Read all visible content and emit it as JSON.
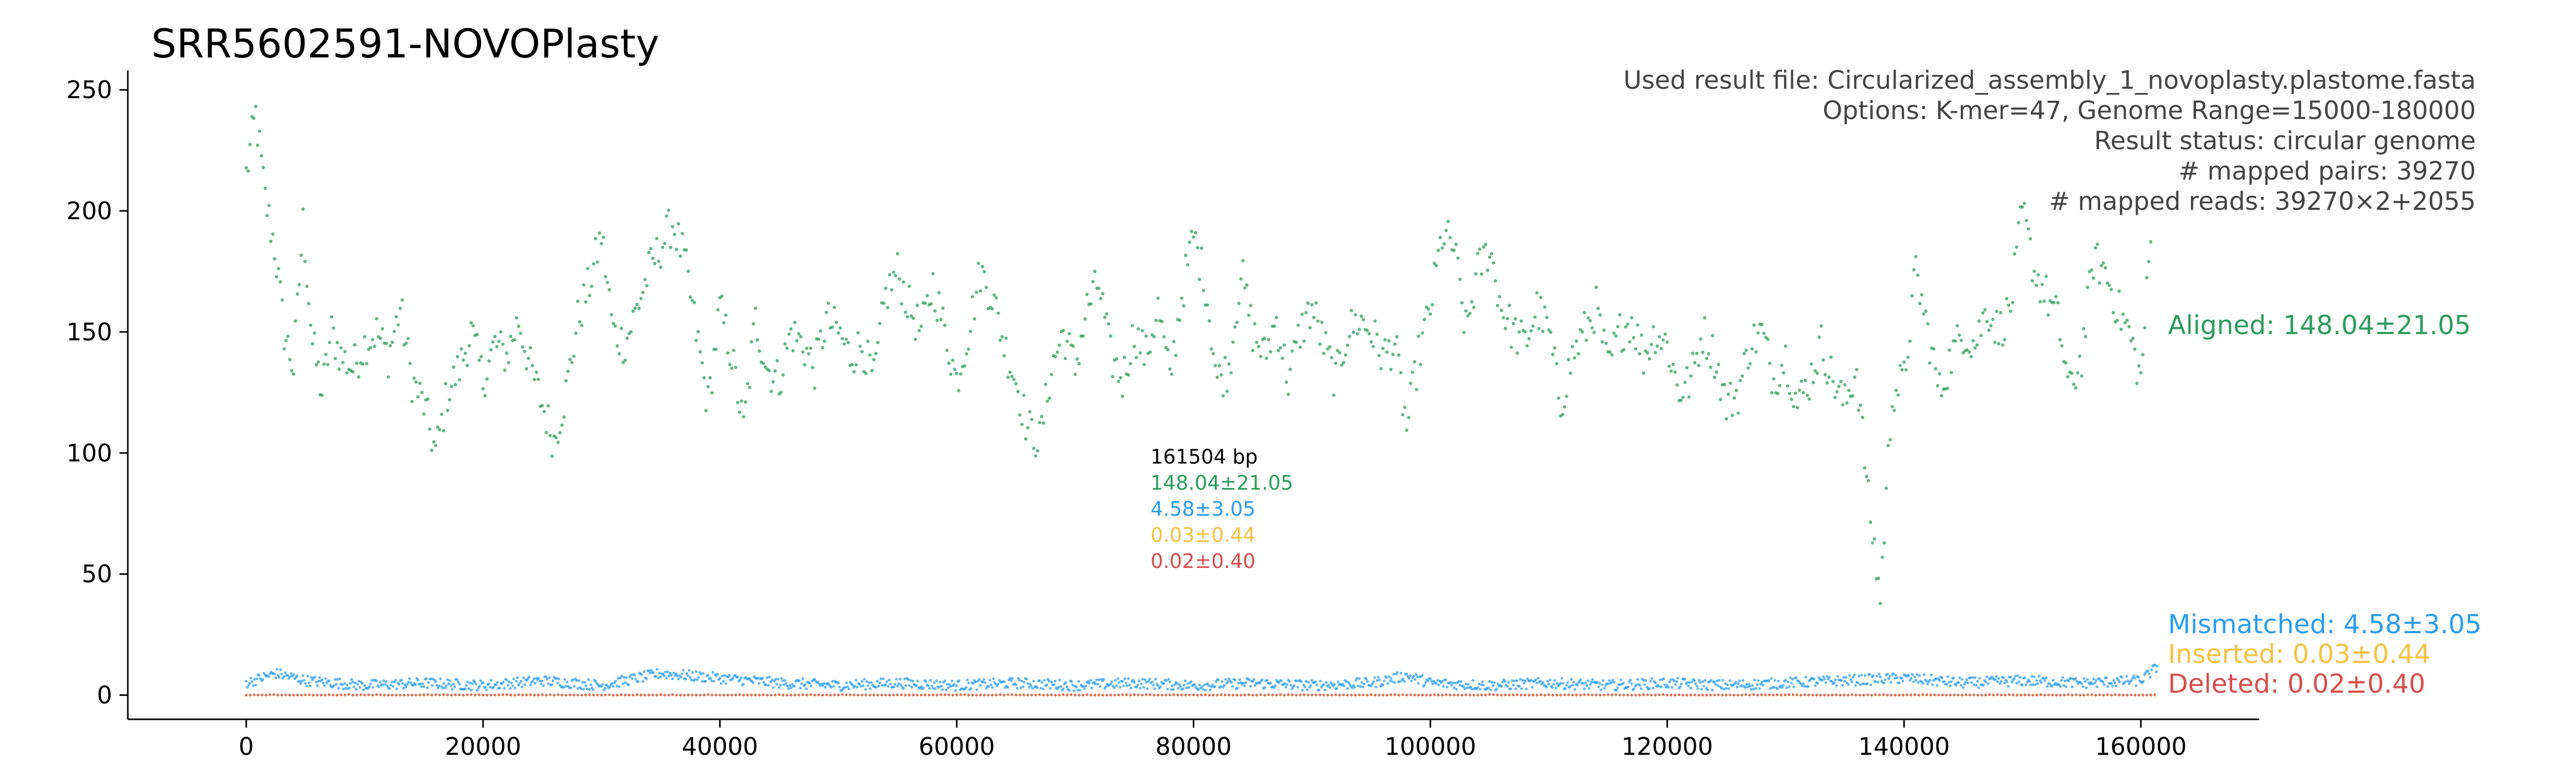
{
  "chart_data": {
    "type": "scatter",
    "title": "SRR5602591-NOVOPlasty",
    "xlabel": "",
    "ylabel": "",
    "xlim": [
      -10000,
      170000
    ],
    "ylim": [
      -10,
      258
    ],
    "x_ticks": [
      0,
      20000,
      40000,
      60000,
      80000,
      100000,
      120000,
      140000,
      160000
    ],
    "y_ticks": [
      0,
      50,
      100,
      150,
      200,
      250
    ],
    "genome_length": 161504,
    "info_lines": [
      "Used result file: Circularized_assembly_1_novoplasty.plastome.fasta",
      "Options: K-mer=47, Genome Range=15000-180000",
      "Result status: circular genome",
      "# mapped pairs: 39270",
      "# mapped reads: 39270×2+2055"
    ],
    "center_stats": {
      "length_label": "161504 bp",
      "aligned": "148.04±21.05",
      "mismatched": "4.58±3.05",
      "inserted": "0.03±0.44",
      "deleted": "0.02±0.40"
    },
    "series": [
      {
        "name": "Aligned: 148.04±21.05",
        "mean": 148.04,
        "sd": 21.05,
        "color": "#2a9d5c",
        "points": [
          [
            0,
            215
          ],
          [
            800,
            240
          ],
          [
            1600,
            205
          ],
          [
            2400,
            185
          ],
          [
            3200,
            150
          ],
          [
            4000,
            135
          ],
          [
            4800,
            195
          ],
          [
            5600,
            145
          ],
          [
            6400,
            125
          ],
          [
            7200,
            150
          ],
          [
            8000,
            140
          ],
          [
            9000,
            135
          ],
          [
            10000,
            145
          ],
          [
            11000,
            150
          ],
          [
            12000,
            140
          ],
          [
            13000,
            160
          ],
          [
            14000,
            130
          ],
          [
            15000,
            120
          ],
          [
            16000,
            100
          ],
          [
            17000,
            125
          ],
          [
            18000,
            135
          ],
          [
            19000,
            150
          ],
          [
            20000,
            130
          ],
          [
            21000,
            145
          ],
          [
            22000,
            140
          ],
          [
            23000,
            155
          ],
          [
            24000,
            135
          ],
          [
            25000,
            120
          ],
          [
            26000,
            105
          ],
          [
            27000,
            125
          ],
          [
            28000,
            155
          ],
          [
            29000,
            170
          ],
          [
            30000,
            190
          ],
          [
            31000,
            150
          ],
          [
            32000,
            145
          ],
          [
            33000,
            160
          ],
          [
            34000,
            175
          ],
          [
            35000,
            185
          ],
          [
            36000,
            195
          ],
          [
            37000,
            180
          ],
          [
            38000,
            150
          ],
          [
            39000,
            120
          ],
          [
            40000,
            160
          ],
          [
            41000,
            140
          ],
          [
            42000,
            110
          ],
          [
            43000,
            155
          ],
          [
            44000,
            135
          ],
          [
            45000,
            130
          ],
          [
            46000,
            150
          ],
          [
            47000,
            145
          ],
          [
            48000,
            135
          ],
          [
            49000,
            155
          ],
          [
            50000,
            150
          ],
          [
            51000,
            140
          ],
          [
            52000,
            145
          ],
          [
            53000,
            130
          ],
          [
            54000,
            165
          ],
          [
            55000,
            175
          ],
          [
            56000,
            160
          ],
          [
            57000,
            150
          ],
          [
            58000,
            170
          ],
          [
            59000,
            150
          ],
          [
            60000,
            130
          ],
          [
            61000,
            150
          ],
          [
            62000,
            175
          ],
          [
            63000,
            165
          ],
          [
            64000,
            145
          ],
          [
            65000,
            130
          ],
          [
            66000,
            110
          ],
          [
            67000,
            105
          ],
          [
            68000,
            135
          ],
          [
            69000,
            150
          ],
          [
            70000,
            135
          ],
          [
            71000,
            160
          ],
          [
            72000,
            170
          ],
          [
            73000,
            140
          ],
          [
            74000,
            130
          ],
          [
            75000,
            150
          ],
          [
            76000,
            140
          ],
          [
            77000,
            160
          ],
          [
            78000,
            130
          ],
          [
            79000,
            165
          ],
          [
            80000,
            190
          ],
          [
            81000,
            170
          ],
          [
            82000,
            130
          ],
          [
            83000,
            135
          ],
          [
            84000,
            175
          ],
          [
            85000,
            150
          ],
          [
            86000,
            140
          ],
          [
            87000,
            155
          ],
          [
            88000,
            130
          ],
          [
            89000,
            150
          ],
          [
            90000,
            160
          ],
          [
            91000,
            145
          ],
          [
            92000,
            130
          ],
          [
            93000,
            150
          ],
          [
            94000,
            155
          ],
          [
            95000,
            150
          ],
          [
            96000,
            140
          ],
          [
            97000,
            145
          ],
          [
            98000,
            110
          ],
          [
            99000,
            140
          ],
          [
            100000,
            160
          ],
          [
            101000,
            190
          ],
          [
            102000,
            185
          ],
          [
            103000,
            150
          ],
          [
            104000,
            175
          ],
          [
            105000,
            185
          ],
          [
            106000,
            160
          ],
          [
            107000,
            150
          ],
          [
            108000,
            145
          ],
          [
            109000,
            160
          ],
          [
            110000,
            150
          ],
          [
            111000,
            120
          ],
          [
            112000,
            140
          ],
          [
            113000,
            150
          ],
          [
            114000,
            160
          ],
          [
            115000,
            135
          ],
          [
            116000,
            150
          ],
          [
            117000,
            155
          ],
          [
            118000,
            140
          ],
          [
            119000,
            150
          ],
          [
            120000,
            145
          ],
          [
            121000,
            125
          ],
          [
            122000,
            130
          ],
          [
            123000,
            150
          ],
          [
            124000,
            140
          ],
          [
            125000,
            120
          ],
          [
            126000,
            125
          ],
          [
            127000,
            145
          ],
          [
            128000,
            150
          ],
          [
            129000,
            130
          ],
          [
            130000,
            140
          ],
          [
            131000,
            120
          ],
          [
            132000,
            130
          ],
          [
            133000,
            145
          ],
          [
            134000,
            130
          ],
          [
            135000,
            120
          ],
          [
            136000,
            135
          ],
          [
            137000,
            80
          ],
          [
            138000,
            40
          ],
          [
            139000,
            125
          ],
          [
            140000,
            130
          ],
          [
            141000,
            175
          ],
          [
            142000,
            150
          ],
          [
            143000,
            125
          ],
          [
            144000,
            140
          ],
          [
            145000,
            150
          ],
          [
            146000,
            145
          ],
          [
            147000,
            160
          ],
          [
            148000,
            150
          ],
          [
            149000,
            160
          ],
          [
            150000,
            200
          ],
          [
            151000,
            175
          ],
          [
            152000,
            165
          ],
          [
            153000,
            155
          ],
          [
            154000,
            125
          ],
          [
            155000,
            140
          ],
          [
            156000,
            180
          ],
          [
            157000,
            175
          ],
          [
            158000,
            160
          ],
          [
            159000,
            150
          ],
          [
            160000,
            130
          ],
          [
            161000,
            200
          ]
        ]
      },
      {
        "name": "Mismatched: 4.58±3.05",
        "mean": 4.58,
        "sd": 3.05,
        "color": "#2a9df0",
        "points": [
          [
            0,
            5
          ],
          [
            2500,
            9
          ],
          [
            5000,
            6
          ],
          [
            10000,
            4
          ],
          [
            15000,
            5
          ],
          [
            20000,
            4
          ],
          [
            25000,
            6
          ],
          [
            30000,
            4
          ],
          [
            35000,
            9
          ],
          [
            40000,
            7
          ],
          [
            45000,
            5
          ],
          [
            50000,
            4
          ],
          [
            55000,
            5
          ],
          [
            60000,
            4
          ],
          [
            65000,
            5
          ],
          [
            70000,
            4
          ],
          [
            75000,
            5
          ],
          [
            80000,
            4
          ],
          [
            85000,
            5
          ],
          [
            90000,
            4
          ],
          [
            95000,
            5
          ],
          [
            98000,
            8
          ],
          [
            100000,
            5
          ],
          [
            105000,
            4
          ],
          [
            110000,
            5
          ],
          [
            115000,
            4
          ],
          [
            120000,
            5
          ],
          [
            125000,
            4
          ],
          [
            130000,
            5
          ],
          [
            135000,
            6
          ],
          [
            140000,
            7
          ],
          [
            145000,
            5
          ],
          [
            150000,
            6
          ],
          [
            155000,
            5
          ],
          [
            160000,
            6
          ],
          [
            161500,
            12
          ]
        ]
      },
      {
        "name": "Inserted: 0.03±0.44",
        "mean": 0.03,
        "sd": 0.44,
        "color": "#f7c242",
        "points": [
          [
            0,
            0
          ],
          [
            40000,
            0
          ],
          [
            80000,
            0
          ],
          [
            120000,
            0
          ],
          [
            161500,
            0
          ]
        ]
      },
      {
        "name": "Deleted: 0.02±0.40",
        "mean": 0.02,
        "sd": 0.4,
        "color": "#d94d4d",
        "points": [
          [
            0,
            0
          ],
          [
            40000,
            0
          ],
          [
            80000,
            0
          ],
          [
            120000,
            0
          ],
          [
            161500,
            0
          ]
        ]
      }
    ]
  }
}
